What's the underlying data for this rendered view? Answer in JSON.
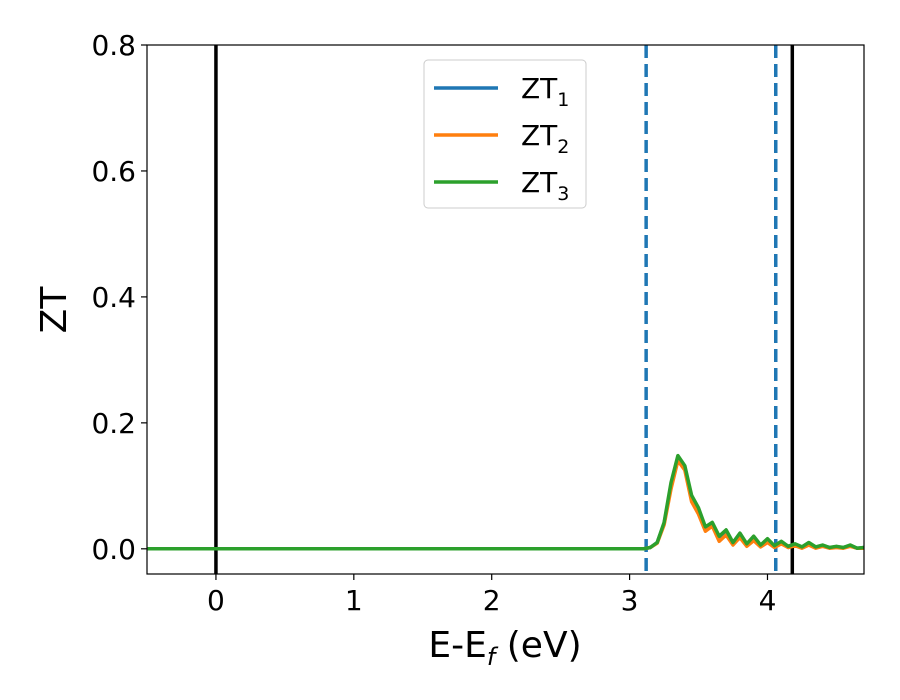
{
  "chart_data": {
    "type": "line",
    "xlabel": {
      "main": "E-E",
      "sub": "f",
      "tail": " (eV)"
    },
    "ylabel": "ZT",
    "xlim": [
      -0.5,
      4.7
    ],
    "ylim": [
      -0.04,
      0.8
    ],
    "xticks": [
      0,
      1,
      2,
      3,
      4
    ],
    "yticks": [
      0.0,
      0.2,
      0.4,
      0.6,
      0.8
    ],
    "xtick_labels": [
      "0",
      "1",
      "2",
      "3",
      "4"
    ],
    "ytick_labels": [
      "0.0",
      "0.2",
      "0.4",
      "0.6",
      "0.8"
    ],
    "grid": false,
    "legend_position": "top-center",
    "vlines": [
      {
        "x": 0,
        "style": "solid",
        "color": "#000000"
      },
      {
        "x": 4.18,
        "style": "solid",
        "color": "#000000"
      },
      {
        "x": 3.12,
        "style": "dashed",
        "color": "#1f77b4"
      },
      {
        "x": 4.06,
        "style": "dashed",
        "color": "#1f77b4"
      }
    ],
    "series": [
      {
        "name": "ZT",
        "sub": "1",
        "color": "#1f77b4",
        "x": [
          -0.5,
          3.1,
          3.15,
          3.2,
          3.25,
          3.3,
          3.35,
          3.4,
          3.45,
          3.5,
          3.55,
          3.6,
          3.65,
          3.7,
          3.75,
          3.8,
          3.85,
          3.9,
          3.95,
          4.0,
          4.05,
          4.1,
          4.15,
          4.2,
          4.25,
          4.3,
          4.35,
          4.4,
          4.45,
          4.5,
          4.55,
          4.6,
          4.65,
          4.7
        ],
        "y": [
          0,
          0,
          0.002,
          0.01,
          0.04,
          0.1,
          0.145,
          0.13,
          0.08,
          0.06,
          0.03,
          0.04,
          0.015,
          0.025,
          0.008,
          0.02,
          0.005,
          0.015,
          0.004,
          0.012,
          0.003,
          0.01,
          0.002,
          0.006,
          0.002,
          0.008,
          0.002,
          0.005,
          0.002,
          0.003,
          0.002,
          0.005,
          0.001,
          0.002
        ]
      },
      {
        "name": "ZT",
        "sub": "2",
        "color": "#ff7f0e",
        "x": [
          -0.5,
          3.1,
          3.15,
          3.2,
          3.25,
          3.3,
          3.35,
          3.4,
          3.45,
          3.5,
          3.55,
          3.6,
          3.65,
          3.7,
          3.75,
          3.8,
          3.85,
          3.9,
          3.95,
          4.0,
          4.05,
          4.1,
          4.15,
          4.2,
          4.25,
          4.3,
          4.35,
          4.4,
          4.45,
          4.5,
          4.55,
          4.6,
          4.65,
          4.7
        ],
        "y": [
          0,
          0,
          0.002,
          0.009,
          0.038,
          0.095,
          0.14,
          0.125,
          0.075,
          0.055,
          0.028,
          0.036,
          0.012,
          0.022,
          0.006,
          0.018,
          0.004,
          0.013,
          0.003,
          0.01,
          0.002,
          0.008,
          0.002,
          0.005,
          0.001,
          0.006,
          0.001,
          0.004,
          0.001,
          0.002,
          0.001,
          0.004,
          0.001,
          0.001
        ]
      },
      {
        "name": "ZT",
        "sub": "3",
        "color": "#2ca02c",
        "x": [
          -0.5,
          3.1,
          3.15,
          3.2,
          3.25,
          3.3,
          3.35,
          3.4,
          3.45,
          3.5,
          3.55,
          3.6,
          3.65,
          3.7,
          3.75,
          3.8,
          3.85,
          3.9,
          3.95,
          4.0,
          4.05,
          4.1,
          4.15,
          4.2,
          4.25,
          4.3,
          4.35,
          4.4,
          4.45,
          4.5,
          4.55,
          4.6,
          4.65,
          4.7
        ],
        "y": [
          0,
          0,
          0.002,
          0.01,
          0.042,
          0.105,
          0.148,
          0.132,
          0.085,
          0.065,
          0.035,
          0.042,
          0.02,
          0.03,
          0.01,
          0.025,
          0.008,
          0.02,
          0.006,
          0.016,
          0.005,
          0.012,
          0.004,
          0.008,
          0.003,
          0.01,
          0.003,
          0.006,
          0.002,
          0.004,
          0.002,
          0.006,
          0.001,
          0.002
        ]
      }
    ]
  }
}
